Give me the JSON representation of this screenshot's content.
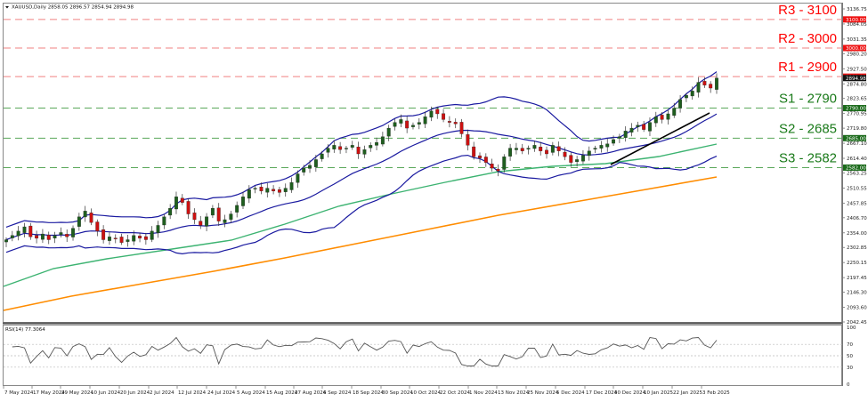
{
  "header": {
    "symbol": "XAUUSD,Daily",
    "ohlc": "2858.05 2896.57 2854.94 2894.98",
    "title": "XAUUSD,Daily 2858.05 2896.57 2854.94 2894.98"
  },
  "rsi_panel": {
    "label": "RSI(14) 77.3064",
    "levels": [
      "100",
      "70",
      "50",
      "30",
      "0"
    ]
  },
  "colors": {
    "resistance": "#ff0000",
    "support": "#1a7a1a",
    "support_tag": "#1a6a1a",
    "bullish_candle": "#1e5e1e",
    "bearish_candle": "#cc1111",
    "bollinger": "#1a1aa0",
    "ma_green": "#3cb371",
    "ma_orange": "#ff8c00",
    "trendline": "#000000",
    "rsi_line": "#555555"
  },
  "chart_data": {
    "type": "candlestick",
    "title": "XAUUSD,Daily 2858.05 2896.57 2854.94 2894.98",
    "xlabel": "",
    "ylabel": "",
    "ylim": [
      2042.45,
      3136.75
    ],
    "price_axis_ticks": [
      "3136.75",
      "3084.05",
      "3031.35",
      "2980.20",
      "2927.50",
      "2874.80",
      "2823.65",
      "2770.95",
      "2719.80",
      "2667.10",
      "2614.40",
      "2563.25",
      "2510.55",
      "2457.85",
      "2406.70",
      "2354.00",
      "2302.85",
      "2250.15",
      "2197.45",
      "2146.30",
      "2093.60",
      "2042.45"
    ],
    "x_tick_labels": [
      "7 May 2024",
      "17 May 2024",
      "29 May 2024",
      "10 Jun 2024",
      "20 Jun 2024",
      "2 Jul 2024",
      "12 Jul 2024",
      "24 Jul 2024",
      "5 Aug 2024",
      "15 Aug 2024",
      "27 Aug 2024",
      "6 Sep 2024",
      "18 Sep 2024",
      "30 Sep 2024",
      "10 Oct 2024",
      "22 Oct 2024",
      "1 Nov 2024",
      "13 Nov 2024",
      "25 Nov 2024",
      "5 Dec 2024",
      "17 Dec 2024",
      "30 Dec 2024",
      "10 Jan 2025",
      "22 Jan 2025",
      "3 Feb 2025"
    ],
    "levels": [
      {
        "name": "R3",
        "label": "R3 - 3100",
        "value": 3100,
        "tag": "3100.00",
        "type": "resistance"
      },
      {
        "name": "R2",
        "label": "R2 - 3000",
        "value": 3000,
        "tag": "3000.00",
        "type": "resistance"
      },
      {
        "name": "R1",
        "label": "R1 - 2900",
        "value": 2900,
        "tag": "2900.00",
        "type": "resistance"
      },
      {
        "name": "S1",
        "label": "S1 - 2790",
        "value": 2790,
        "tag": "2790.00",
        "type": "support"
      },
      {
        "name": "S2",
        "label": "S2 - 2685",
        "value": 2685,
        "tag": "2685.00",
        "type": "support"
      },
      {
        "name": "S3",
        "label": "S3 - 2582",
        "value": 2582,
        "tag": "2582.00",
        "type": "support"
      }
    ],
    "last_close": 2894.98,
    "close_series_approx": [
      2330,
      2345,
      2360,
      2375,
      2340,
      2335,
      2350,
      2330,
      2345,
      2355,
      2340,
      2370,
      2410,
      2430,
      2390,
      2360,
      2330,
      2340,
      2335,
      2320,
      2330,
      2345,
      2335,
      2330,
      2360,
      2380,
      2410,
      2440,
      2480,
      2460,
      2420,
      2400,
      2380,
      2410,
      2440,
      2395,
      2400,
      2420,
      2450,
      2480,
      2505,
      2510,
      2500,
      2510,
      2500,
      2495,
      2510,
      2530,
      2560,
      2580,
      2590,
      2610,
      2630,
      2650,
      2660,
      2645,
      2650,
      2660,
      2630,
      2645,
      2660,
      2670,
      2690,
      2720,
      2740,
      2750,
      2720,
      2730,
      2740,
      2760,
      2780,
      2770,
      2750,
      2740,
      2735,
      2700,
      2660,
      2620,
      2615,
      2600,
      2580,
      2570,
      2620,
      2650,
      2650,
      2640,
      2650,
      2660,
      2640,
      2630,
      2660,
      2640,
      2620,
      2600,
      2610,
      2625,
      2640,
      2650,
      2660,
      2665,
      2680,
      2690,
      2710,
      2720,
      2730,
      2715,
      2740,
      2760,
      2750,
      2770,
      2790,
      2820,
      2835,
      2850,
      2880,
      2870,
      2860,
      2895
    ],
    "series": [
      {
        "name": "RSI(14)",
        "last": 77.3064,
        "range": [
          0,
          100
        ],
        "reference_levels": [
          70,
          50,
          30
        ]
      }
    ],
    "indicators": [
      "Bollinger Bands (20)",
      "Moving Average (green)",
      "Moving Average (orange)",
      "Ascending trendline"
    ]
  }
}
